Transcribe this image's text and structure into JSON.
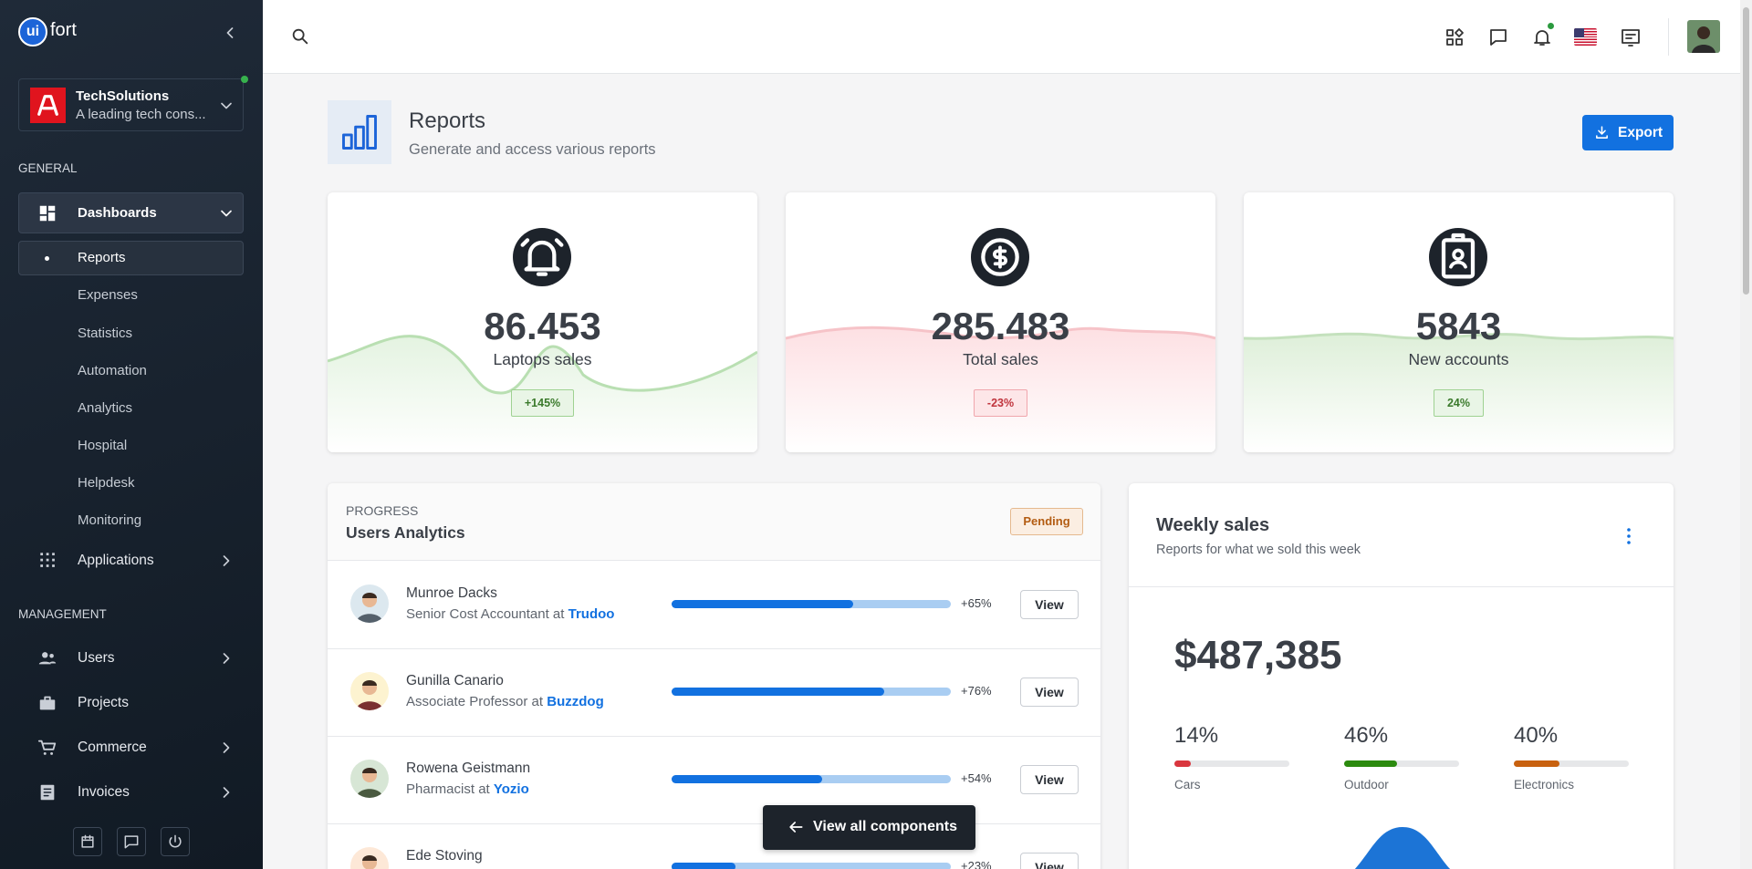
{
  "sidebar": {
    "brand_prefix": "ui",
    "brand": "fort",
    "org": {
      "name": "TechSolutions",
      "desc": "A leading tech cons..."
    },
    "general_title": "GENERAL",
    "dashboards": "Dashboards",
    "dashboard_items": [
      "Reports",
      "Expenses",
      "Statistics",
      "Automation",
      "Analytics",
      "Hospital",
      "Helpdesk",
      "Monitoring"
    ],
    "applications": "Applications",
    "management_title": "MANAGEMENT",
    "management_items": [
      "Users",
      "Projects",
      "Commerce",
      "Invoices"
    ]
  },
  "header": {
    "title": "Reports",
    "subtitle": "Generate and access various reports",
    "export": "Export"
  },
  "stats": [
    {
      "value": "86.453",
      "label": "Laptops sales",
      "change": "+145%"
    },
    {
      "value": "285.483",
      "label": "Total sales",
      "change": "-23%"
    },
    {
      "value": "5843",
      "label": "New accounts",
      "change": "24%"
    }
  ],
  "users_analytics": {
    "kicker": "PROGRESS",
    "title": "Users Analytics",
    "status": "Pending",
    "rows": [
      {
        "name": "Munroe Dacks",
        "role": "Senior Cost Accountant at",
        "company": "Trudoo",
        "progress": 65,
        "progress_label": "+65%",
        "action": "View"
      },
      {
        "name": "Gunilla Canario",
        "role": "Associate Professor at",
        "company": "Buzzdog",
        "progress": 76,
        "progress_label": "+76%",
        "action": "View"
      },
      {
        "name": "Rowena Geistmann",
        "role": "Pharmacist at",
        "company": "Yozio",
        "progress": 54,
        "progress_label": "+54%",
        "action": "View"
      },
      {
        "name": "Ede Stoving",
        "progress": 23,
        "progress_label": "+23%",
        "action": "View"
      }
    ]
  },
  "weekly_sales": {
    "title": "Weekly sales",
    "subtitle": "Reports for what we sold this week",
    "total": "$487,385",
    "categories": [
      {
        "label": "Cars",
        "value": 14,
        "value_label": "14%",
        "color": "#d9363e"
      },
      {
        "label": "Outdoor",
        "value": 46,
        "value_label": "46%",
        "color": "#2b8a0e"
      },
      {
        "label": "Electronics",
        "value": 40,
        "value_label": "40%",
        "color": "#c8610f"
      }
    ]
  },
  "footer_button": "View all components"
}
